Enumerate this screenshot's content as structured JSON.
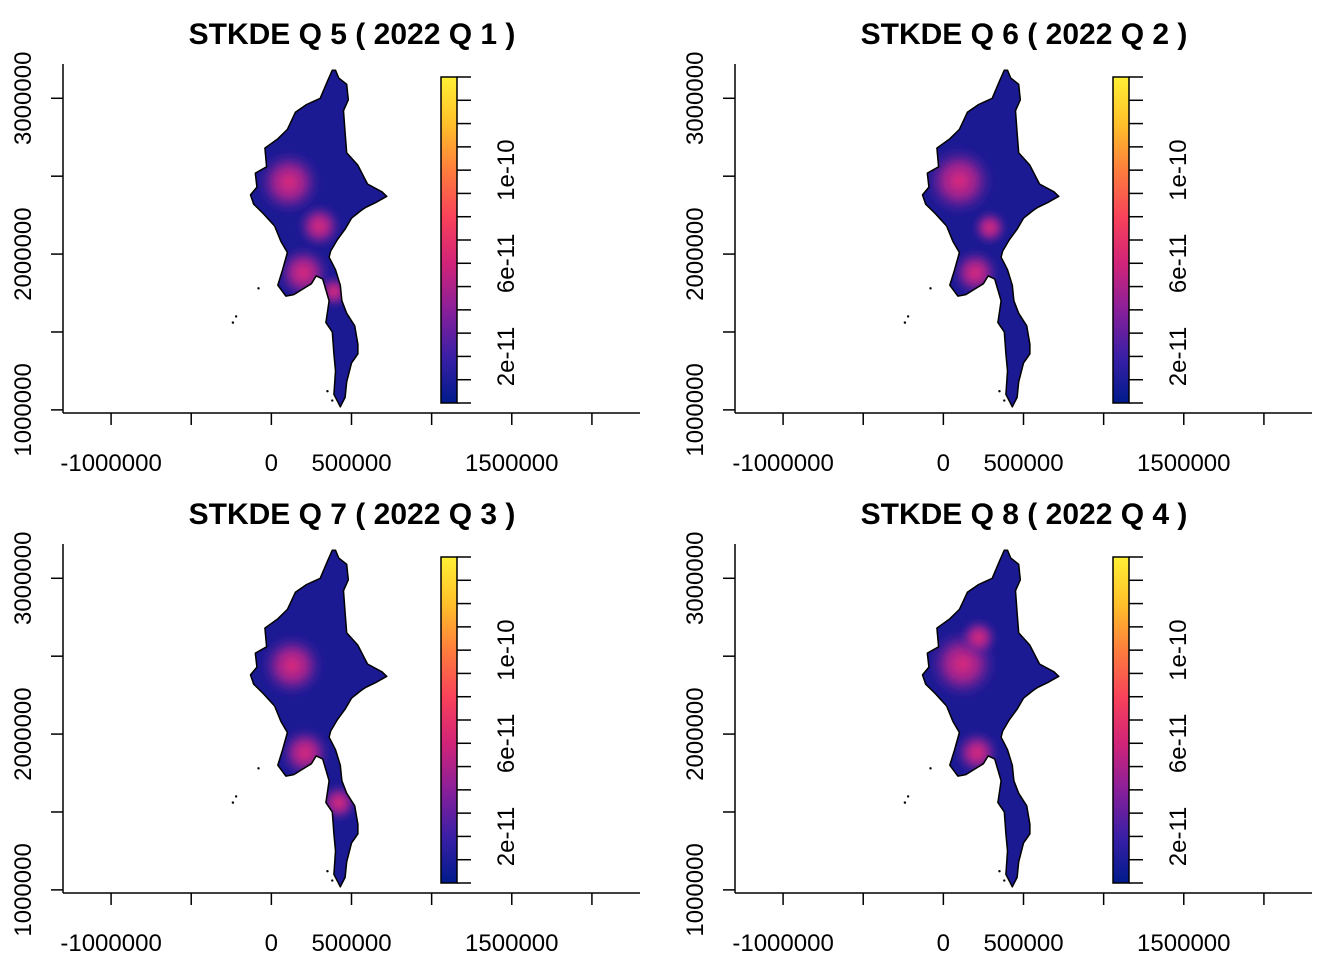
{
  "chart_data": [
    {
      "type": "heatmap",
      "title": "STKDE Q 5 ( 2022 Q 1 )",
      "xlabel": "",
      "ylabel": "",
      "xlim": [
        -1300000,
        2300000
      ],
      "ylim": [
        980000,
        3220000
      ],
      "x_ticks": [
        -1000000,
        -500000,
        0,
        500000,
        1000000,
        1500000,
        2000000
      ],
      "x_tick_labels": [
        "-1000000",
        "",
        "0",
        "500000",
        "",
        "1500000",
        ""
      ],
      "y_ticks": [
        1000000,
        1500000,
        2000000,
        2500000,
        3000000
      ],
      "y_tick_labels": [
        "1000000",
        "",
        "2000000",
        "",
        "3000000"
      ],
      "colorbar": {
        "min": 0,
        "max": 1.4e-10,
        "ticks": [
          2e-11,
          6e-11,
          1e-10
        ],
        "tick_labels": [
          "2e-11",
          "6e-11",
          "1e-10"
        ],
        "colors": [
          "#001b8c",
          "#3a1fa6",
          "#8a1f9a",
          "#d12478",
          "#f9425a",
          "#fe7d3c",
          "#ffc12a",
          "#fff035"
        ]
      },
      "hotspots": [
        {
          "x": 110000,
          "y": 2460000,
          "intensity": 7.2e-11
        },
        {
          "x": 300000,
          "y": 2180000,
          "intensity": 4e-11
        },
        {
          "x": 200000,
          "y": 1880000,
          "intensity": 5.5e-11
        },
        {
          "x": 390000,
          "y": 1760000,
          "intensity": 2.2e-11
        }
      ]
    },
    {
      "type": "heatmap",
      "title": "STKDE Q 6 ( 2022 Q 2 )",
      "xlabel": "",
      "ylabel": "",
      "xlim": [
        -1300000,
        2300000
      ],
      "ylim": [
        980000,
        3220000
      ],
      "x_ticks": [
        -1000000,
        -500000,
        0,
        500000,
        1000000,
        1500000,
        2000000
      ],
      "x_tick_labels": [
        "-1000000",
        "",
        "0",
        "500000",
        "",
        "1500000",
        ""
      ],
      "y_ticks": [
        1000000,
        1500000,
        2000000,
        2500000,
        3000000
      ],
      "y_tick_labels": [
        "1000000",
        "",
        "2000000",
        "",
        "3000000"
      ],
      "colorbar": {
        "min": 0,
        "max": 1.4e-10,
        "ticks": [
          2e-11,
          6e-11,
          1e-10
        ],
        "tick_labels": [
          "2e-11",
          "6e-11",
          "1e-10"
        ],
        "colors": [
          "#001b8c",
          "#3a1fa6",
          "#8a1f9a",
          "#d12478",
          "#f9425a",
          "#fe7d3c",
          "#ffc12a",
          "#fff035"
        ]
      },
      "hotspots": [
        {
          "x": 100000,
          "y": 2470000,
          "intensity": 8e-11
        },
        {
          "x": 290000,
          "y": 2170000,
          "intensity": 2.5e-11
        },
        {
          "x": 200000,
          "y": 1880000,
          "intensity": 4.5e-11
        }
      ]
    },
    {
      "type": "heatmap",
      "title": "STKDE Q 7 ( 2022 Q 3 )",
      "xlabel": "",
      "ylabel": "",
      "xlim": [
        -1300000,
        2300000
      ],
      "ylim": [
        980000,
        3220000
      ],
      "x_ticks": [
        -1000000,
        -500000,
        0,
        500000,
        1000000,
        1500000,
        2000000
      ],
      "x_tick_labels": [
        "-1000000",
        "",
        "0",
        "500000",
        "",
        "1500000",
        ""
      ],
      "y_ticks": [
        1000000,
        1500000,
        2000000,
        2500000,
        3000000
      ],
      "y_tick_labels": [
        "1000000",
        "",
        "2000000",
        "",
        "3000000"
      ],
      "colorbar": {
        "min": 0,
        "max": 1.4e-10,
        "ticks": [
          2e-11,
          6e-11,
          1e-10
        ],
        "tick_labels": [
          "2e-11",
          "6e-11",
          "1e-10"
        ],
        "colors": [
          "#001b8c",
          "#3a1fa6",
          "#8a1f9a",
          "#d12478",
          "#f9425a",
          "#fe7d3c",
          "#ffc12a",
          "#fff035"
        ]
      },
      "hotspots": [
        {
          "x": 130000,
          "y": 2440000,
          "intensity": 7e-11
        },
        {
          "x": 210000,
          "y": 1880000,
          "intensity": 5e-11
        },
        {
          "x": 420000,
          "y": 1560000,
          "intensity": 3e-11
        }
      ]
    },
    {
      "type": "heatmap",
      "title": "STKDE Q 8 ( 2022 Q 4 )",
      "xlabel": "",
      "ylabel": "",
      "xlim": [
        -1300000,
        2300000
      ],
      "ylim": [
        980000,
        3220000
      ],
      "x_ticks": [
        -1000000,
        -500000,
        0,
        500000,
        1000000,
        1500000,
        2000000
      ],
      "x_tick_labels": [
        "-1000000",
        "",
        "0",
        "500000",
        "",
        "1500000",
        ""
      ],
      "y_ticks": [
        1000000,
        1500000,
        2000000,
        2500000,
        3000000
      ],
      "y_tick_labels": [
        "1000000",
        "",
        "2000000",
        "",
        "3000000"
      ],
      "colorbar": {
        "min": 0,
        "max": 1.4e-10,
        "ticks": [
          2e-11,
          6e-11,
          1e-10
        ],
        "tick_labels": [
          "2e-11",
          "6e-11",
          "1e-10"
        ],
        "colors": [
          "#001b8c",
          "#3a1fa6",
          "#8a1f9a",
          "#d12478",
          "#f9425a",
          "#fe7d3c",
          "#ffc12a",
          "#fff035"
        ]
      },
      "hotspots": [
        {
          "x": 120000,
          "y": 2450000,
          "intensity": 8e-11
        },
        {
          "x": 220000,
          "y": 2620000,
          "intensity": 3e-11
        },
        {
          "x": 210000,
          "y": 1880000,
          "intensity": 4e-11
        }
      ]
    }
  ],
  "map_outline": [
    [
      305000,
      3000000
    ],
    [
      350000,
      3110000
    ],
    [
      380000,
      3180000
    ],
    [
      400000,
      3180000
    ],
    [
      420000,
      3130000
    ],
    [
      470000,
      3090000
    ],
    [
      480000,
      2990000
    ],
    [
      450000,
      2920000
    ],
    [
      460000,
      2780000
    ],
    [
      470000,
      2650000
    ],
    [
      540000,
      2570000
    ],
    [
      600000,
      2450000
    ],
    [
      690000,
      2400000
    ],
    [
      720000,
      2370000
    ],
    [
      650000,
      2330000
    ],
    [
      590000,
      2300000
    ],
    [
      560000,
      2280000
    ],
    [
      500000,
      2230000
    ],
    [
      460000,
      2160000
    ],
    [
      410000,
      2090000
    ],
    [
      370000,
      2020000
    ],
    [
      360000,
      1980000
    ],
    [
      400000,
      1900000
    ],
    [
      430000,
      1800000
    ],
    [
      440000,
      1700000
    ],
    [
      470000,
      1620000
    ],
    [
      520000,
      1540000
    ],
    [
      540000,
      1420000
    ],
    [
      540000,
      1360000
    ],
    [
      500000,
      1300000
    ],
    [
      470000,
      1180000
    ],
    [
      460000,
      1080000
    ],
    [
      430000,
      1020000
    ],
    [
      390000,
      1100000
    ],
    [
      400000,
      1250000
    ],
    [
      390000,
      1360000
    ],
    [
      380000,
      1500000
    ],
    [
      340000,
      1560000
    ],
    [
      360000,
      1700000
    ],
    [
      320000,
      1840000
    ],
    [
      280000,
      1860000
    ],
    [
      250000,
      1810000
    ],
    [
      140000,
      1740000
    ],
    [
      90000,
      1730000
    ],
    [
      40000,
      1800000
    ],
    [
      70000,
      1900000
    ],
    [
      100000,
      2010000
    ],
    [
      60000,
      2080000
    ],
    [
      20000,
      2180000
    ],
    [
      -50000,
      2260000
    ],
    [
      -110000,
      2320000
    ],
    [
      -130000,
      2380000
    ],
    [
      -90000,
      2430000
    ],
    [
      -100000,
      2520000
    ],
    [
      -30000,
      2560000
    ],
    [
      -40000,
      2680000
    ],
    [
      40000,
      2740000
    ],
    [
      100000,
      2800000
    ],
    [
      150000,
      2910000
    ],
    [
      220000,
      2960000
    ]
  ]
}
